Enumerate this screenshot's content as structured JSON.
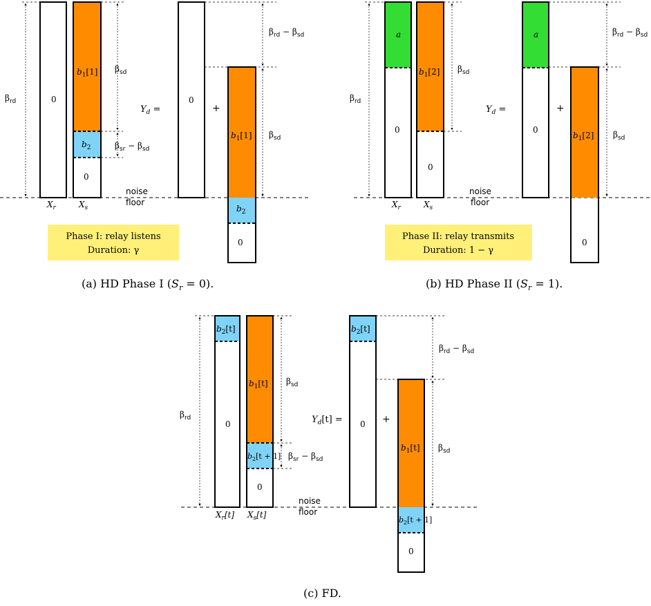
{
  "colors": {
    "orange": "#FF8C00",
    "blue": "#7FD3F7",
    "green": "#33DD33",
    "yellow_box": "#FFF07A",
    "white": "#FFFFFF",
    "black": "#000000"
  },
  "common": {
    "noise_line1": "noise",
    "noise_line2": "floor",
    "plus": "+",
    "zero": "0"
  },
  "panel_a": {
    "caption": "(a)  HD Phase I (Sr = 0).",
    "caption_parts": [
      "(a)  HD Phase I (",
      "S",
      "r",
      " = 0)."
    ],
    "xr_label": [
      "X",
      "r"
    ],
    "xs_label": [
      "X",
      "s"
    ],
    "beta_rd": [
      "β",
      "rd"
    ],
    "beta_sd": [
      "β",
      "sd"
    ],
    "beta_sr_minus_sd": [
      "β",
      "sr",
      " − ",
      "β",
      "sd"
    ],
    "beta_rd_minus_sd": [
      "β",
      "rd",
      " − ",
      "β",
      "sd"
    ],
    "yd": [
      "Y",
      "d",
      " ="
    ],
    "b1": [
      "b",
      "1",
      "[1]"
    ],
    "b2": [
      "b",
      "2"
    ],
    "phase_box_line1": "Phase I: relay listens",
    "phase_box_line2": "Duration: γ"
  },
  "panel_b": {
    "caption": "(b)  HD Phase II (Sr = 1).",
    "caption_parts": [
      "(b)  HD Phase II (",
      "S",
      "r",
      " = 1)."
    ],
    "xr_label": [
      "X",
      "r"
    ],
    "xs_label": [
      "X",
      "s"
    ],
    "beta_rd": [
      "β",
      "rd"
    ],
    "beta_sd": [
      "β",
      "sd"
    ],
    "beta_rd_minus_sd": [
      "β",
      "rd",
      " − ",
      "β",
      "sd"
    ],
    "yd": [
      "Y",
      "d",
      " ="
    ],
    "a": "a",
    "b1": [
      "b",
      "1",
      "[2]"
    ],
    "phase_box_line1": "Phase II: relay transmits",
    "phase_box_line2": "Duration: 1 − γ"
  },
  "panel_c": {
    "caption": "(c)  FD.",
    "xr_label": [
      "X",
      "r",
      "[t]"
    ],
    "xs_label": [
      "X",
      "s",
      "[t]"
    ],
    "beta_rd": [
      "β",
      "rd"
    ],
    "beta_sd": [
      "β",
      "sd"
    ],
    "beta_sr_minus_sd": [
      "β",
      "sr",
      " − ",
      "β",
      "sd"
    ],
    "beta_rd_minus_sd": [
      "β",
      "rd",
      " − ",
      "β",
      "sd"
    ],
    "yd": [
      "Y",
      "d",
      "[t] ="
    ],
    "b2t": [
      "b",
      "2",
      "[t]"
    ],
    "b1t": [
      "b",
      "1",
      "[t]"
    ],
    "b2t1": [
      "b",
      "2",
      "[t + 1]"
    ]
  }
}
